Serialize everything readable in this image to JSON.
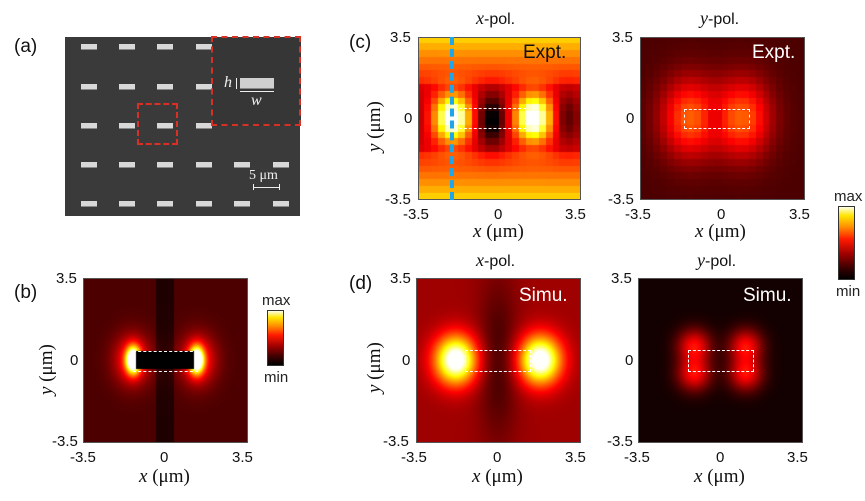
{
  "figure": {
    "panels": {
      "a": {
        "label": "(a)",
        "inset": {
          "h_label": "h",
          "w_label": "w"
        },
        "scale_bar": "5 μm",
        "rows": 5,
        "cols": 6,
        "colors": {
          "background": "#3a3a3a",
          "bar": "#d8d8d8",
          "highlight": "#d93025"
        }
      },
      "b": {
        "label": "(b)",
        "yticks": [
          "3.5",
          "0",
          "-3.5"
        ],
        "xticks": [
          "-3.5",
          "0",
          "3.5"
        ],
        "xlabel_var": "x",
        "xlabel_unit": " (μm)",
        "ylabel_var": "y",
        "ylabel_unit": " (μm)",
        "colorbar": {
          "max": "max",
          "min": "min"
        }
      },
      "c": {
        "label": "(c)",
        "left": {
          "title_var": "x",
          "title_rest": "-pol.",
          "tag": "Expt."
        },
        "right": {
          "title_var": "y",
          "title_rest": "-pol.",
          "tag": "Expt."
        },
        "yticks": [
          "3.5",
          "0",
          "-3.5"
        ],
        "xticks": [
          "-3.5",
          "0",
          "3.5"
        ],
        "xlabel_var": "x",
        "xlabel_unit": " (μm)",
        "ylabel_var": "y",
        "ylabel_unit": " (μm)",
        "line_cut_color": "#1ea6e8"
      },
      "d": {
        "label": "(d)",
        "left": {
          "title_var": "x",
          "title_rest": "-pol.",
          "tag": "Simu."
        },
        "right": {
          "title_var": "y",
          "title_rest": "-pol.",
          "tag": "Simu."
        },
        "yticks": [
          "3.5",
          "0",
          "-3.5"
        ],
        "xticks": [
          "-3.5",
          "0",
          "3.5"
        ],
        "xlabel_var": "x",
        "xlabel_unit": " (μm)",
        "ylabel_var": "y",
        "ylabel_unit": " (μm)"
      }
    },
    "shared_colorbar": {
      "max": "max",
      "min": "min"
    },
    "colormap": "hot"
  },
  "chart_data": [
    {
      "type": "heatmap",
      "panel": "b",
      "title": "",
      "xlabel": "x (μm)",
      "ylabel": "y (μm)",
      "xlim": [
        -3.5,
        3.5
      ],
      "ylim": [
        -3.5,
        3.5
      ],
      "xticks": [
        -3.5,
        0,
        3.5
      ],
      "yticks": [
        -3.5,
        0,
        3.5
      ],
      "description": "Near-field intensity concentrated at the two short ends of the rod; rod interior dark",
      "rod_outline": {
        "x": [
          -1.2,
          1.2
        ],
        "y": [
          -0.35,
          0.35
        ]
      },
      "colorbar": [
        "min",
        "max"
      ]
    },
    {
      "type": "heatmap",
      "panel": "c-left",
      "title": "x-pol.",
      "annotation": "Expt.",
      "xlabel": "x (μm)",
      "ylabel": "y (μm)",
      "xlim": [
        -3.5,
        3.5
      ],
      "ylim": [
        -3.5,
        3.5
      ],
      "xticks": [
        -3.5,
        0,
        3.5
      ],
      "yticks": [
        -3.5,
        0,
        3.5
      ],
      "hotspots": [
        {
          "x": -2.0,
          "y": 0
        },
        {
          "x": 1.5,
          "y": 0
        }
      ],
      "line_cut_x": -2.0,
      "rod_outline": {
        "x": [
          -1.5,
          1.0
        ],
        "y": [
          -0.35,
          0.35
        ]
      }
    },
    {
      "type": "heatmap",
      "panel": "c-right",
      "title": "y-pol.",
      "annotation": "Expt.",
      "xlabel": "x (μm)",
      "ylabel": "y (μm)",
      "xlim": [
        -3.5,
        3.5
      ],
      "ylim": [
        -3.5,
        3.5
      ],
      "xticks": [
        -3.5,
        0,
        3.5
      ],
      "yticks": [
        -3.5,
        0,
        3.5
      ],
      "hotspots": [
        {
          "x": -1.4,
          "y": 0
        },
        {
          "x": 0.8,
          "y": 0
        }
      ],
      "rod_outline": {
        "x": [
          -1.5,
          1.1
        ],
        "y": [
          -0.35,
          0.35
        ]
      }
    },
    {
      "type": "heatmap",
      "panel": "d-left",
      "title": "x-pol.",
      "annotation": "Simu.",
      "xlabel": "x (μm)",
      "ylabel": "y (μm)",
      "xlim": [
        -3.5,
        3.5
      ],
      "ylim": [
        -3.5,
        3.5
      ],
      "xticks": [
        -3.5,
        0,
        3.5
      ],
      "yticks": [
        -3.5,
        0,
        3.5
      ],
      "hotspots": [
        {
          "x": -1.8,
          "y": 0
        },
        {
          "x": 1.8,
          "y": 0
        }
      ],
      "rod_outline": {
        "x": [
          -1.4,
          1.4
        ],
        "y": [
          -0.45,
          0.45
        ]
      }
    },
    {
      "type": "heatmap",
      "panel": "d-right",
      "title": "y-pol.",
      "annotation": "Simu.",
      "xlabel": "x (μm)",
      "ylabel": "y (μm)",
      "xlim": [
        -3.5,
        3.5
      ],
      "ylim": [
        -3.5,
        3.5
      ],
      "xticks": [
        -3.5,
        0,
        3.5
      ],
      "yticks": [
        -3.5,
        0,
        3.5
      ],
      "hotspots": [
        {
          "x": -1.1,
          "y": 0.6
        },
        {
          "x": 1.1,
          "y": 0.6
        },
        {
          "x": -1.1,
          "y": -0.6
        },
        {
          "x": 1.1,
          "y": -0.6
        }
      ],
      "rod_outline": {
        "x": [
          -1.4,
          1.4
        ],
        "y": [
          -0.45,
          0.45
        ]
      }
    }
  ]
}
